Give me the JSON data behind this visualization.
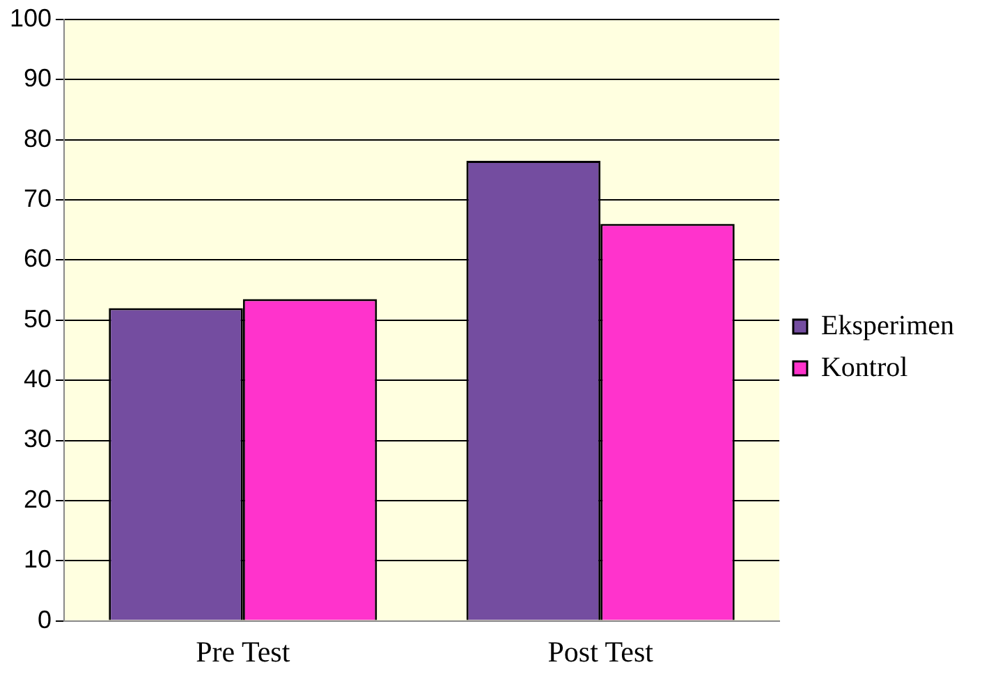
{
  "chart_data": {
    "type": "bar",
    "categories": [
      "Pre Test",
      "Post Test"
    ],
    "series": [
      {
        "name": "Eksperimen",
        "color": "#744da0",
        "values": [
          52,
          76.5
        ]
      },
      {
        "name": "Kontrol",
        "color": "#ff33cc",
        "values": [
          53.5,
          66
        ]
      }
    ],
    "ylim": [
      0,
      100
    ],
    "yticks": [
      0,
      10,
      20,
      30,
      40,
      50,
      60,
      70,
      80,
      90,
      100
    ],
    "grid": "y",
    "legend": "right"
  }
}
